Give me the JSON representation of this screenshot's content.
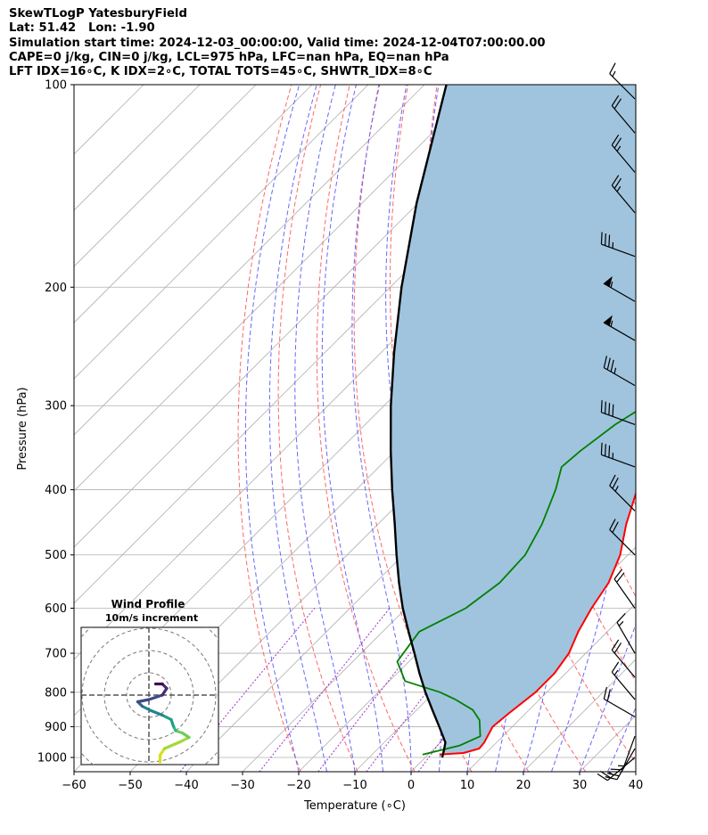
{
  "header": {
    "title": "SkewTLogP YatesburyField",
    "latlon": "Lat: 51.42   Lon: -1.90",
    "times": "Simulation start time: 2024-12-03_00:00:00, Valid time: 2024-12-04T07:00:00.00",
    "indices1": "CAPE=0 j/kg, CIN=0 j/kg, LCL=975 hPa, LFC=nan hPa, EQ=nan hPa",
    "indices2": "LFT IDX=16∘C, K IDX=2∘C, TOTAL TOTS=45∘C, SHWTR_IDX=8∘C"
  },
  "colors": {
    "temperature": "#ff0000",
    "dewpoint": "#008000",
    "parcel": "#000000",
    "cape_fill": "#a0c4de",
    "dry_adiabat": "#ff6666",
    "moist_adiabat": "#6666ff",
    "isotherm": "#b0b0b0",
    "mixing_ratio": "#9933cc"
  },
  "chart_data": {
    "type": "line",
    "title": "",
    "xlabel": "Temperature (∘C)",
    "ylabel": "Pressure (hPa)",
    "xlim": [
      -60,
      40
    ],
    "ylim": [
      1050,
      100
    ],
    "y_scale": "log",
    "skew": true,
    "grid": true,
    "x_ticks": [
      -60,
      -50,
      -40,
      -30,
      -20,
      -10,
      0,
      10,
      20,
      30,
      40
    ],
    "y_ticks": [
      1000,
      900,
      800,
      700,
      600,
      500,
      400,
      300,
      200,
      100
    ],
    "series": [
      {
        "key": "temperature",
        "points": [
          [
            990,
            2
          ],
          [
            985,
            6
          ],
          [
            970,
            8
          ],
          [
            950,
            7.8
          ],
          [
            900,
            6.5
          ],
          [
            860,
            7
          ],
          [
            800,
            8
          ],
          [
            750,
            8
          ],
          [
            700,
            7
          ],
          [
            650,
            4.8
          ],
          [
            600,
            3
          ],
          [
            550,
            1.5
          ],
          [
            500,
            -1.4
          ],
          [
            450,
            -5.8
          ],
          [
            400,
            -10
          ],
          [
            380,
            -12.2
          ],
          [
            350,
            -14.8
          ],
          [
            320,
            -16.7
          ],
          [
            300,
            -18.6
          ],
          [
            280,
            -21.7
          ],
          [
            250,
            -25.5
          ],
          [
            230,
            -27.5
          ],
          [
            200,
            -31
          ],
          [
            180,
            -35
          ],
          [
            160,
            -38
          ],
          [
            150,
            -39.6
          ],
          [
            140,
            -41.5
          ],
          [
            120,
            -46
          ],
          [
            110,
            -48.5
          ],
          [
            100,
            -51
          ]
        ]
      },
      {
        "key": "dewpoint",
        "points": [
          [
            990,
            -1
          ],
          [
            960,
            4
          ],
          [
            930,
            6
          ],
          [
            880,
            3
          ],
          [
            850,
            0
          ],
          [
            820,
            -5
          ],
          [
            800,
            -9
          ],
          [
            770,
            -17.2
          ],
          [
            720,
            -22.1
          ],
          [
            650,
            -23.5
          ],
          [
            600,
            -19.4
          ],
          [
            550,
            -17.9
          ],
          [
            500,
            -18.3
          ],
          [
            450,
            -20.8
          ],
          [
            400,
            -24.5
          ],
          [
            370,
            -27.5
          ],
          [
            350,
            -27
          ],
          [
            320,
            -25.5
          ],
          [
            300,
            -23.5
          ],
          [
            270,
            -25
          ],
          [
            240,
            -27.5
          ],
          [
            220,
            -29.4
          ],
          [
            200,
            -29
          ],
          [
            180,
            -30
          ],
          [
            160,
            -33.5
          ],
          [
            150,
            -36
          ],
          [
            140,
            -38
          ],
          [
            130,
            -38.1
          ],
          [
            120,
            -37
          ],
          [
            100,
            -38.1
          ]
        ]
      },
      {
        "key": "parcel",
        "points": [
          [
            1000,
            3
          ],
          [
            975,
            2
          ],
          [
            950,
            0.9
          ],
          [
            900,
            -3
          ],
          [
            850,
            -7.2
          ],
          [
            800,
            -11.6
          ],
          [
            750,
            -16
          ],
          [
            700,
            -20.5
          ],
          [
            650,
            -25.4
          ],
          [
            600,
            -30.6
          ],
          [
            550,
            -35.8
          ],
          [
            500,
            -41.2
          ],
          [
            450,
            -47
          ],
          [
            400,
            -53.6
          ],
          [
            350,
            -60.8
          ],
          [
            300,
            -68.8
          ],
          [
            250,
            -77.7
          ],
          [
            200,
            -88
          ],
          [
            150,
            -100.3
          ],
          [
            100,
            -116.1
          ]
        ]
      }
    ],
    "wind_barbs": [
      {
        "p": 1000,
        "speed_kt": 25,
        "dir": 230
      },
      {
        "p": 970,
        "speed_kt": 20,
        "dir": 210
      },
      {
        "p": 930,
        "speed_kt": 15,
        "dir": 200
      },
      {
        "p": 870,
        "speed_kt": 20,
        "dir": 300
      },
      {
        "p": 820,
        "speed_kt": 15,
        "dir": 320
      },
      {
        "p": 760,
        "speed_kt": 20,
        "dir": 320
      },
      {
        "p": 700,
        "speed_kt": 15,
        "dir": 330
      },
      {
        "p": 600,
        "speed_kt": 20,
        "dir": 325
      },
      {
        "p": 500,
        "speed_kt": 20,
        "dir": 315
      },
      {
        "p": 430,
        "speed_kt": 25,
        "dir": 315
      },
      {
        "p": 370,
        "speed_kt": 35,
        "dir": 290
      },
      {
        "p": 320,
        "speed_kt": 40,
        "dir": 290
      },
      {
        "p": 280,
        "speed_kt": 35,
        "dir": 300
      },
      {
        "p": 240,
        "speed_kt": 55,
        "dir": 300
      },
      {
        "p": 210,
        "speed_kt": 55,
        "dir": 300
      },
      {
        "p": 180,
        "speed_kt": 35,
        "dir": 290
      },
      {
        "p": 155,
        "speed_kt": 25,
        "dir": 320
      },
      {
        "p": 135,
        "speed_kt": 25,
        "dir": 320
      },
      {
        "p": 118,
        "speed_kt": 20,
        "dir": 320
      },
      {
        "p": 105,
        "speed_kt": 15,
        "dir": 315
      }
    ],
    "inset": {
      "title": "Wind Profile",
      "subtitle": "10m/s increment",
      "rings_ms": [
        10,
        20,
        30,
        40
      ],
      "hodograph_uv": [
        [
          5,
          -30
        ],
        [
          5,
          -27
        ],
        [
          7,
          -24
        ],
        [
          14,
          -21
        ],
        [
          18,
          -19
        ],
        [
          15,
          -17
        ],
        [
          12,
          -16
        ],
        [
          11,
          -14
        ],
        [
          10,
          -11
        ],
        [
          6,
          -9
        ],
        [
          1,
          -7
        ],
        [
          -3,
          -5
        ],
        [
          -5,
          -3
        ],
        [
          0,
          -2
        ],
        [
          6,
          0
        ],
        [
          8,
          3
        ],
        [
          6,
          5
        ],
        [
          3,
          5
        ]
      ]
    }
  }
}
